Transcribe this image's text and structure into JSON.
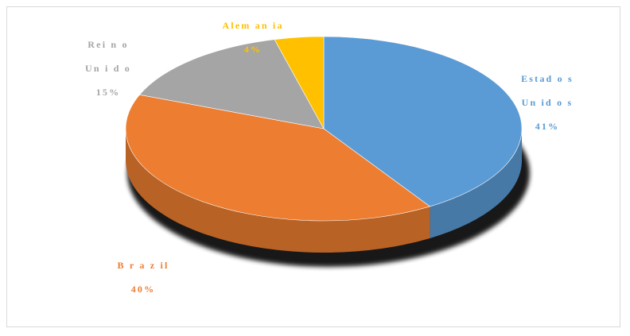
{
  "chart_data": {
    "type": "pie",
    "style": "3d",
    "title": "",
    "legend": "none",
    "categories": [
      "Estados Unidos",
      "Brazil",
      "Reino Unido",
      "Alemania"
    ],
    "values": [
      41,
      40,
      15,
      4
    ],
    "colors": [
      "#5b9bd5",
      "#ed7d31",
      "#a5a5a5",
      "#ffc000"
    ],
    "label_lines": [
      [
        "Estad o s",
        "Un id o s",
        "41%"
      ],
      [
        "B r a z il",
        "40%"
      ],
      [
        "Rei n o",
        "Un i d o",
        "15%"
      ],
      [
        "Alem an ia",
        "4%"
      ]
    ]
  }
}
